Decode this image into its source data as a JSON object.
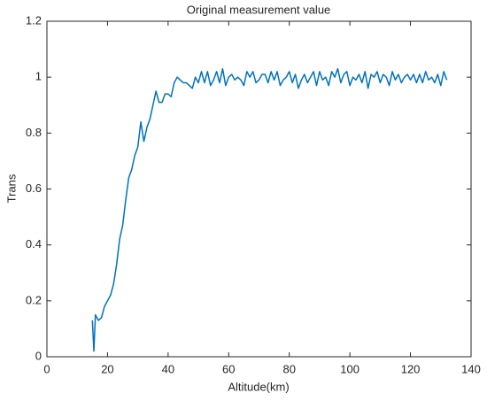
{
  "chart_data": {
    "type": "line",
    "title": "Original measurement value",
    "x_label": "Altitude(km)",
    "y_label": "Trans",
    "xlim": [
      0,
      140
    ],
    "xticks": [
      0,
      20,
      40,
      60,
      80,
      100,
      120,
      140
    ],
    "ylim": [
      0,
      1.2
    ],
    "yticks": [
      0,
      0.2,
      0.4,
      0.6,
      0.8,
      1,
      1.2
    ],
    "x": [
      15,
      15.5,
      16,
      17,
      18,
      19,
      20,
      21,
      22,
      23,
      24,
      25,
      26,
      27,
      28,
      29,
      30,
      31,
      32,
      33,
      34,
      35,
      36,
      37,
      38,
      39,
      40,
      41,
      42,
      43,
      44,
      45,
      46,
      47,
      48,
      49,
      50,
      51,
      52,
      53,
      54,
      55,
      56,
      57,
      58,
      59,
      60,
      61,
      62,
      63,
      64,
      65,
      66,
      67,
      68,
      69,
      70,
      71,
      72,
      73,
      74,
      75,
      76,
      77,
      78,
      79,
      80,
      81,
      82,
      83,
      84,
      85,
      86,
      87,
      88,
      89,
      90,
      91,
      92,
      93,
      94,
      95,
      96,
      97,
      98,
      99,
      100,
      101,
      102,
      103,
      104,
      105,
      106,
      107,
      108,
      109,
      110,
      111,
      112,
      113,
      114,
      115,
      116,
      117,
      118,
      119,
      120,
      121,
      122,
      123,
      124,
      125,
      126,
      127,
      128,
      129,
      130,
      131,
      132
    ],
    "series": [
      {
        "name": "Trans",
        "color": "#0072bd",
        "values": [
          0.13,
          0.02,
          0.15,
          0.13,
          0.14,
          0.18,
          0.2,
          0.22,
          0.26,
          0.33,
          0.42,
          0.47,
          0.56,
          0.64,
          0.67,
          0.72,
          0.75,
          0.84,
          0.77,
          0.82,
          0.85,
          0.9,
          0.95,
          0.91,
          0.91,
          0.94,
          0.94,
          0.93,
          0.98,
          1.0,
          0.99,
          0.98,
          0.98,
          0.97,
          0.96,
          1.0,
          0.98,
          1.02,
          0.98,
          1.02,
          0.97,
          0.99,
          1.02,
          0.98,
          1.03,
          0.97,
          1.0,
          1.01,
          0.99,
          1.0,
          0.99,
          0.97,
          1.02,
          1.0,
          1.02,
          0.98,
          0.99,
          1.01,
          1.01,
          0.98,
          1.02,
          0.99,
          1.02,
          0.97,
          0.99,
          1.0,
          1.02,
          0.98,
          1.01,
          0.96,
          0.99,
          1.01,
          0.98,
          1.0,
          1.02,
          0.97,
          1.02,
          0.99,
          1.0,
          0.97,
          1.02,
          1.0,
          1.03,
          0.98,
          1.01,
          1.02,
          0.97,
          1.0,
          0.99,
          1.01,
          0.98,
          1.02,
          0.96,
          1.01,
          1.0,
          1.02,
          0.98,
          1.01,
          1.0,
          0.97,
          1.02,
          0.99,
          1.01,
          0.98,
          1.0,
          1.01,
          0.99,
          1.01,
          0.98,
          1.01,
          0.98,
          1.02,
          0.99,
          1.0,
          0.98,
          1.01,
          0.97,
          1.02,
          0.99
        ]
      }
    ]
  }
}
